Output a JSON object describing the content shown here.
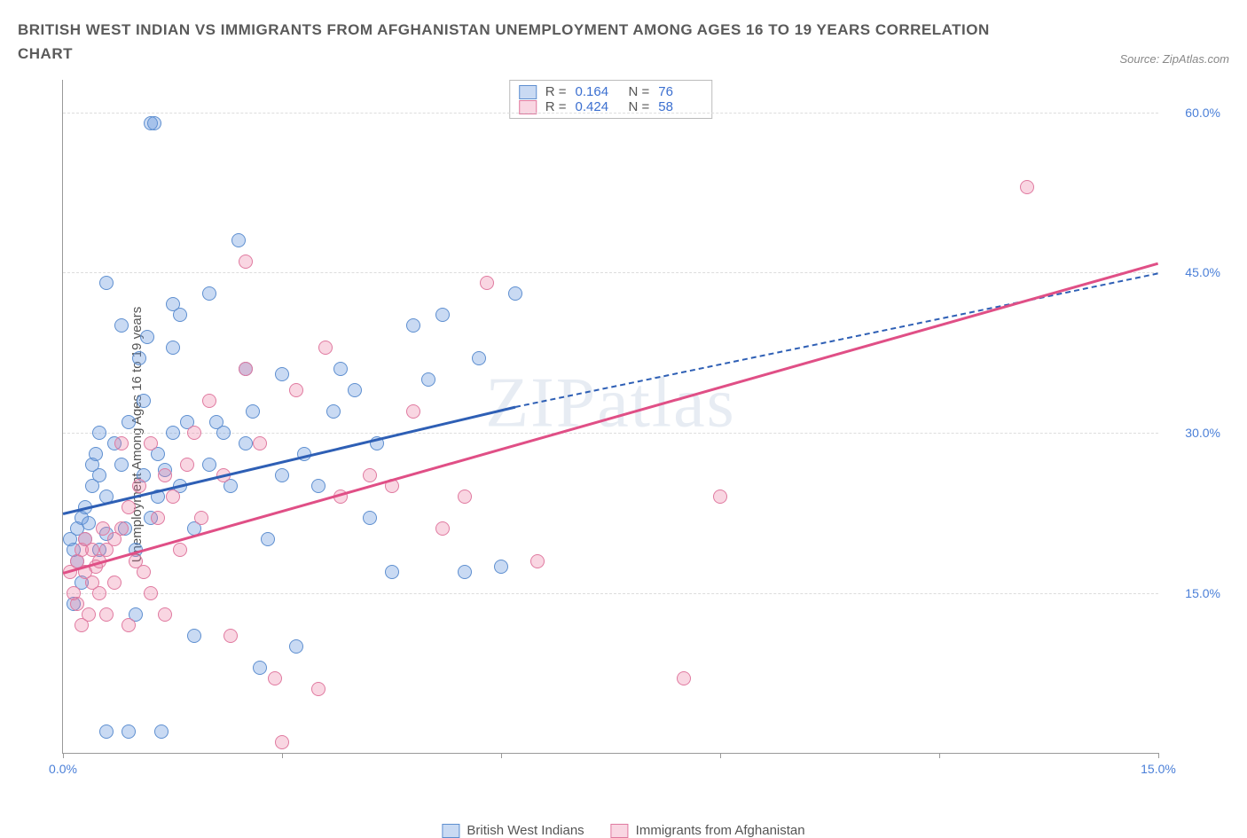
{
  "title": "BRITISH WEST INDIAN VS IMMIGRANTS FROM AFGHANISTAN UNEMPLOYMENT AMONG AGES 16 TO 19 YEARS CORRELATION CHART",
  "source_label": "Source: ZipAtlas.com",
  "watermark": "ZIPatlas",
  "chart": {
    "type": "scatter",
    "ylabel": "Unemployment Among Ages 16 to 19 years",
    "xlim": [
      0,
      15
    ],
    "ylim": [
      0,
      63
    ],
    "xtick_positions": [
      0,
      3,
      6,
      9,
      12,
      15
    ],
    "xtick_labels": [
      "0.0%",
      "",
      "",
      "",
      "",
      "15.0%"
    ],
    "ytick_positions": [
      15,
      30,
      45,
      60
    ],
    "ytick_labels": [
      "15.0%",
      "30.0%",
      "45.0%",
      "60.0%"
    ],
    "grid_color": "#dddddd",
    "axis_color": "#999999",
    "tick_label_color": "#4a7fd8",
    "background_color": "#ffffff",
    "marker_radius": 8,
    "marker_opacity": 0.45,
    "series": [
      {
        "name": "British West Indians",
        "color_fill": "rgba(100,150,220,0.35)",
        "color_stroke": "#5e8fd0",
        "line_color": "#2e5fb5",
        "R": "0.164",
        "N": "76",
        "trend": {
          "x0": 0,
          "y0": 22.5,
          "x1_solid": 6.2,
          "y1_solid": 32.5,
          "x1_dash": 15,
          "y1_dash": 45.0
        },
        "points": [
          [
            0.1,
            20
          ],
          [
            0.15,
            19
          ],
          [
            0.2,
            21
          ],
          [
            0.2,
            18
          ],
          [
            0.25,
            22
          ],
          [
            0.3,
            23
          ],
          [
            0.3,
            20
          ],
          [
            0.35,
            21.5
          ],
          [
            0.4,
            25
          ],
          [
            0.4,
            27
          ],
          [
            0.45,
            28
          ],
          [
            0.5,
            26
          ],
          [
            0.5,
            30
          ],
          [
            0.5,
            19
          ],
          [
            0.6,
            24
          ],
          [
            0.6,
            20.5
          ],
          [
            0.6,
            44
          ],
          [
            0.7,
            29
          ],
          [
            0.8,
            27
          ],
          [
            0.8,
            40
          ],
          [
            0.85,
            21
          ],
          [
            0.9,
            31
          ],
          [
            0.9,
            2
          ],
          [
            1.0,
            19
          ],
          [
            1.0,
            13
          ],
          [
            1.05,
            37
          ],
          [
            1.1,
            33
          ],
          [
            1.1,
            26
          ],
          [
            1.15,
            39
          ],
          [
            1.2,
            22
          ],
          [
            1.2,
            59
          ],
          [
            1.25,
            59
          ],
          [
            1.3,
            28
          ],
          [
            1.3,
            24
          ],
          [
            1.4,
            26.5
          ],
          [
            1.5,
            30
          ],
          [
            1.5,
            38
          ],
          [
            1.5,
            42
          ],
          [
            1.6,
            25
          ],
          [
            1.6,
            41
          ],
          [
            1.7,
            31
          ],
          [
            1.8,
            21
          ],
          [
            1.8,
            11
          ],
          [
            2.0,
            27
          ],
          [
            2.0,
            43
          ],
          [
            2.1,
            31
          ],
          [
            2.2,
            30
          ],
          [
            2.3,
            25
          ],
          [
            2.4,
            48
          ],
          [
            2.5,
            29
          ],
          [
            2.5,
            36
          ],
          [
            2.6,
            32
          ],
          [
            2.7,
            8
          ],
          [
            2.8,
            20
          ],
          [
            3.0,
            35.5
          ],
          [
            3.0,
            26
          ],
          [
            3.2,
            10
          ],
          [
            3.3,
            28
          ],
          [
            3.5,
            25
          ],
          [
            3.7,
            32
          ],
          [
            3.8,
            36
          ],
          [
            4.0,
            34
          ],
          [
            4.2,
            22
          ],
          [
            4.3,
            29
          ],
          [
            4.5,
            17
          ],
          [
            4.8,
            40
          ],
          [
            5.0,
            35
          ],
          [
            5.2,
            41
          ],
          [
            5.5,
            17
          ],
          [
            5.7,
            37
          ],
          [
            6.0,
            17.5
          ],
          [
            6.2,
            43
          ],
          [
            0.15,
            14
          ],
          [
            0.25,
            16
          ],
          [
            0.6,
            2
          ],
          [
            1.35,
            2
          ]
        ]
      },
      {
        "name": "Immigrants from Afghanistan",
        "color_fill": "rgba(235,120,160,0.30)",
        "color_stroke": "#e07aa0",
        "line_color": "#e04f86",
        "R": "0.424",
        "N": "58",
        "trend": {
          "x0": 0,
          "y0": 17.0,
          "x1_solid": 15,
          "y1_solid": 46.0
        },
        "points": [
          [
            0.1,
            17
          ],
          [
            0.15,
            15
          ],
          [
            0.2,
            18
          ],
          [
            0.2,
            14
          ],
          [
            0.25,
            19
          ],
          [
            0.3,
            17
          ],
          [
            0.3,
            20
          ],
          [
            0.35,
            13
          ],
          [
            0.4,
            16
          ],
          [
            0.4,
            19
          ],
          [
            0.45,
            17.5
          ],
          [
            0.5,
            15
          ],
          [
            0.5,
            18
          ],
          [
            0.55,
            21
          ],
          [
            0.6,
            19
          ],
          [
            0.6,
            13
          ],
          [
            0.7,
            20
          ],
          [
            0.7,
            16
          ],
          [
            0.8,
            21
          ],
          [
            0.8,
            29
          ],
          [
            0.9,
            23
          ],
          [
            0.9,
            12
          ],
          [
            1.0,
            18
          ],
          [
            1.05,
            25
          ],
          [
            1.1,
            17
          ],
          [
            1.2,
            29
          ],
          [
            1.2,
            15
          ],
          [
            1.3,
            22
          ],
          [
            1.4,
            26
          ],
          [
            1.4,
            13
          ],
          [
            1.5,
            24
          ],
          [
            1.6,
            19
          ],
          [
            1.7,
            27
          ],
          [
            1.8,
            30
          ],
          [
            1.9,
            22
          ],
          [
            2.0,
            33
          ],
          [
            2.2,
            26
          ],
          [
            2.3,
            11
          ],
          [
            2.5,
            36
          ],
          [
            2.5,
            46
          ],
          [
            2.7,
            29
          ],
          [
            2.9,
            7
          ],
          [
            3.0,
            1
          ],
          [
            3.2,
            34
          ],
          [
            3.5,
            6
          ],
          [
            3.6,
            38
          ],
          [
            3.8,
            24
          ],
          [
            4.2,
            26
          ],
          [
            4.5,
            25
          ],
          [
            4.8,
            32
          ],
          [
            5.2,
            21
          ],
          [
            5.5,
            24
          ],
          [
            5.8,
            44
          ],
          [
            6.5,
            18
          ],
          [
            8.5,
            7
          ],
          [
            9.0,
            24
          ],
          [
            13.2,
            53
          ],
          [
            0.25,
            12
          ]
        ]
      }
    ]
  },
  "legend": {
    "series1": "British West Indians",
    "series2": "Immigrants from Afghanistan",
    "R_label": "R =",
    "N_label": "N ="
  }
}
